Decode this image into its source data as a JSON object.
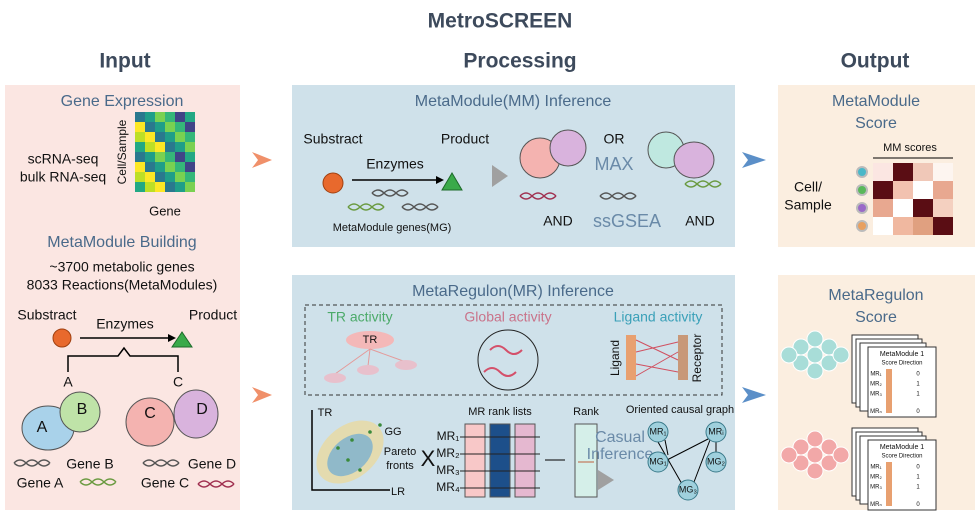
{
  "title": "MetroSCREEN",
  "columns": {
    "input": "Input",
    "processing": "Processing",
    "output": "Output"
  },
  "input": {
    "gene_expression": {
      "title": "Gene Expression",
      "labels": [
        "scRNA-seq",
        "bulk RNA-seq"
      ],
      "y_axis": "Cell/Sample",
      "x_axis": "Gene"
    },
    "building": {
      "title": "MetaModule Building",
      "lines": [
        "~3700 metabolic genes",
        "8033 Reactions(MetaModules)"
      ],
      "substrate": "Substract",
      "enzymes": "Enzymes",
      "product": "Product",
      "branches": [
        "A",
        "C"
      ],
      "proteins": [
        "A",
        "B",
        "C",
        "D"
      ],
      "genes": [
        "Gene B",
        "Gene D",
        "Gene A",
        "Gene C"
      ]
    }
  },
  "mm_inference": {
    "title": "MetaModule(MM) Inference",
    "substrate": "Substract",
    "product": "Product",
    "enzymes": "Enzymes",
    "genes": "MetaModule genes(MG)",
    "or": "OR",
    "max": "MAX",
    "and_left": "AND",
    "ssgsea": "ssGSEA",
    "and_right": "AND"
  },
  "mr_inference": {
    "title": "MetaRegulon(MR) Inference",
    "tr_activity": "TR activity",
    "tr": "TR",
    "global_activity": "Global activity",
    "ligand_activity": "Ligand activity",
    "ligand": "Ligand",
    "receptor": "Receptor",
    "pareto": {
      "y_axis": "TR",
      "x_axis": "LR",
      "gg": "GG",
      "fronts": [
        "Pareto",
        "fronts"
      ]
    },
    "times": "X",
    "rank_lists": "MR rank lists",
    "mr_labels": [
      "MR₁",
      "MR₂",
      "MR₃",
      "MR₄"
    ],
    "rank": "Rank",
    "causal": [
      "Casual",
      "Inference"
    ],
    "graph": {
      "title": "Oriented causal graph",
      "nodes": [
        "MR₁",
        "MRᵢ",
        "MG₁",
        "MG₂",
        "MG₃"
      ]
    }
  },
  "output": {
    "mm_score": {
      "title": [
        "MetaModule",
        "Score"
      ],
      "columns": "MM scores",
      "rows": [
        "Cell/",
        "Sample"
      ]
    },
    "mr_score": {
      "title": [
        "MetaRegulon",
        "Score"
      ],
      "card": {
        "title": "MetaModule 1",
        "header": "Score Direction",
        "rows": [
          [
            "MR₁",
            "0"
          ],
          [
            "MR₂",
            "1"
          ],
          [
            "MR₃",
            "1"
          ],
          [
            "MRₙ",
            "0"
          ]
        ]
      }
    }
  }
}
